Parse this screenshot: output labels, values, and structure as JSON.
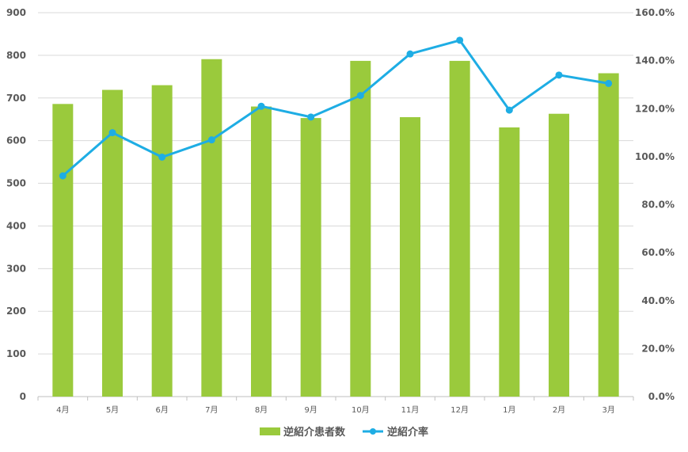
{
  "chart_data": {
    "type": "bar",
    "categories": [
      "4月",
      "5月",
      "6月",
      "7月",
      "8月",
      "9月",
      "10月",
      "11月",
      "12月",
      "1月",
      "2月",
      "3月"
    ],
    "series": [
      {
        "name": "逆紹介患者数",
        "type": "bar",
        "axis": "left",
        "color": "#9ACA3C",
        "values": [
          686,
          719,
          730,
          791,
          680,
          653,
          787,
          655,
          787,
          631,
          663,
          758
        ]
      },
      {
        "name": "逆紹介率",
        "type": "line",
        "axis": "right",
        "color": "#1EADE4",
        "values": [
          92.0,
          110.0,
          99.8,
          107.0,
          121.0,
          116.5,
          125.5,
          142.8,
          148.5,
          119.4,
          134.0,
          130.5
        ]
      }
    ],
    "y_left": {
      "range": [
        0,
        900
      ],
      "ticks": [
        "0",
        "100",
        "200",
        "300",
        "400",
        "500",
        "600",
        "700",
        "800",
        "900"
      ]
    },
    "y_right": {
      "range": [
        0,
        160
      ],
      "ticks": [
        "0.0%",
        "20.0%",
        "40.0%",
        "60.0%",
        "80.0%",
        "100.0%",
        "120.0%",
        "140.0%",
        "160.0%"
      ]
    },
    "grid": true,
    "legend": {
      "position": "bottom",
      "entries": [
        "逆紹介患者数",
        "逆紹介率"
      ]
    }
  }
}
